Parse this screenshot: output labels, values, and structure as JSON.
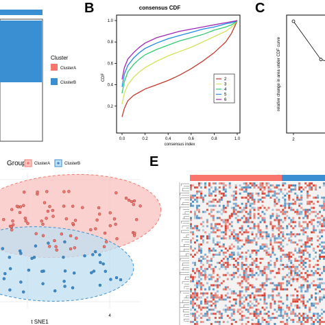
{
  "panels": {
    "b": "B",
    "c": "C",
    "e": "E"
  },
  "legend_a": {
    "title": "Cluster",
    "items": [
      {
        "label": "ClusterA",
        "color": "#f8766d"
      },
      {
        "label": "ClusterB",
        "color": "#3a8fd3"
      }
    ]
  },
  "legend_d": {
    "title": "Group",
    "items": [
      {
        "label": "ClusterA",
        "color": "#f8766d"
      },
      {
        "label": "ClusterB",
        "color": "#3a8fd3"
      }
    ]
  },
  "colors": {
    "clusterA": "#f8766d",
    "clusterB": "#3a8fd3",
    "ellipseA": "#f9c6c2",
    "ellipseB": "#bfdff2",
    "heat_red": "#d7301f",
    "heat_blue": "#2c7bb6"
  },
  "chart_data": [
    {
      "type": "line",
      "title": "consensus CDF",
      "xlabel": "consensus index",
      "ylabel": "CDF",
      "xlim": [
        0,
        1
      ],
      "ylim": [
        0,
        1
      ],
      "xticks": [
        "0.0",
        "0.2",
        "0.4",
        "0.6",
        "0.8",
        "1.0"
      ],
      "yticks": [
        "0.2",
        "0.4",
        "0.6",
        "0.8",
        "1.0"
      ],
      "legend_position": "bottom-right",
      "x": [
        0.0,
        0.02,
        0.05,
        0.1,
        0.15,
        0.2,
        0.3,
        0.4,
        0.5,
        0.6,
        0.7,
        0.8,
        0.9,
        0.95,
        0.98,
        1.0
      ],
      "series": [
        {
          "name": "2",
          "color": "#c0392b",
          "values": [
            0.1,
            0.18,
            0.25,
            0.3,
            0.33,
            0.36,
            0.4,
            0.44,
            0.49,
            0.55,
            0.62,
            0.7,
            0.8,
            0.88,
            0.95,
            1.0
          ]
        },
        {
          "name": "3",
          "color": "#d4e157",
          "values": [
            0.22,
            0.32,
            0.4,
            0.47,
            0.52,
            0.56,
            0.62,
            0.67,
            0.71,
            0.75,
            0.8,
            0.85,
            0.9,
            0.94,
            0.97,
            1.0
          ]
        },
        {
          "name": "4",
          "color": "#2ecc71",
          "values": [
            0.32,
            0.43,
            0.52,
            0.59,
            0.64,
            0.68,
            0.73,
            0.77,
            0.81,
            0.84,
            0.87,
            0.91,
            0.94,
            0.96,
            0.98,
            1.0
          ]
        },
        {
          "name": "5",
          "color": "#1e88e5",
          "values": [
            0.38,
            0.5,
            0.58,
            0.65,
            0.7,
            0.74,
            0.79,
            0.83,
            0.86,
            0.89,
            0.92,
            0.94,
            0.97,
            0.98,
            0.99,
            1.0
          ]
        },
        {
          "name": "6",
          "color": "#9c27b0",
          "values": [
            0.45,
            0.56,
            0.64,
            0.7,
            0.75,
            0.79,
            0.84,
            0.87,
            0.9,
            0.92,
            0.94,
            0.96,
            0.98,
            0.99,
            0.995,
            1.0
          ]
        }
      ]
    },
    {
      "type": "line",
      "ylabel": "relative change in area under CDF curve",
      "xticks": [
        "2"
      ],
      "x": [
        2,
        3,
        4
      ],
      "series": [
        {
          "name": "",
          "color": "#000000",
          "values": [
            0.5,
            0.32,
            0.28
          ]
        }
      ]
    },
    {
      "type": "scatter",
      "xlabel": "t SNE1",
      "xticks": [
        "4"
      ]
    }
  ]
}
